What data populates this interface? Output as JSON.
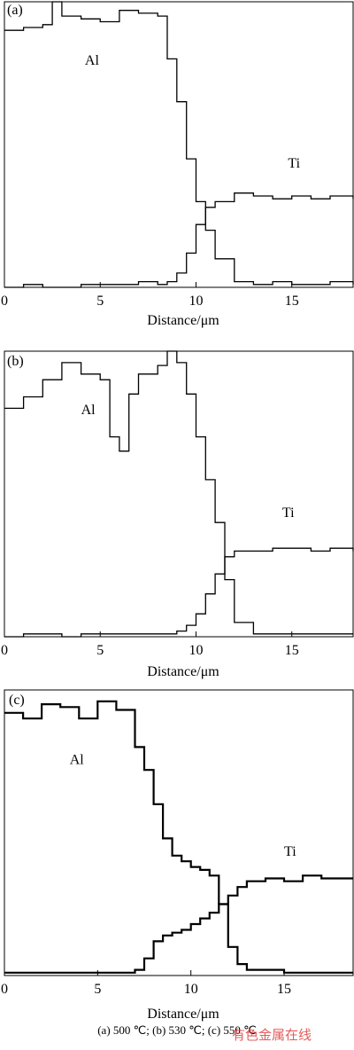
{
  "caption": "(a) 500 ℃; (b) 530 ℃; (c) 550 ℃",
  "watermark": "有色金属在线",
  "chart_data": [
    {
      "type": "line",
      "panel_label": "(a)",
      "xlabel": "Distance/μm",
      "ylabel": "",
      "xlim": [
        0,
        18.2
      ],
      "ylim": [
        0,
        100
      ],
      "xticks": [
        0,
        5,
        10,
        15
      ],
      "tick_labels": [
        "0",
        "5",
        "10",
        "15"
      ],
      "series": [
        {
          "name": "Al",
          "x": [
            0,
            1,
            2,
            2.5,
            3,
            4,
            5,
            6,
            7,
            8,
            8.5,
            9,
            9.5,
            10,
            10.5,
            11,
            12,
            13,
            14,
            15,
            16,
            17,
            18.2
          ],
          "values": [
            90,
            91,
            92,
            100,
            95,
            94,
            93,
            97,
            96,
            95,
            80,
            65,
            45,
            30,
            20,
            10,
            2,
            1,
            2,
            1,
            1,
            2,
            1
          ]
        },
        {
          "name": "Ti",
          "x": [
            0,
            1,
            2,
            3,
            4,
            5,
            6,
            7,
            8,
            8.5,
            9,
            9.5,
            10,
            10.5,
            11,
            12,
            13,
            14,
            15,
            16,
            17,
            18.2
          ],
          "values": [
            0,
            1,
            0,
            0,
            1,
            1,
            1,
            2,
            1,
            2,
            5,
            12,
            22,
            28,
            30,
            33,
            32,
            31,
            32,
            31,
            32,
            31
          ]
        }
      ]
    },
    {
      "type": "line",
      "panel_label": "(b)",
      "xlabel": "Distance/μm",
      "ylabel": "",
      "xlim": [
        0,
        18.2
      ],
      "ylim": [
        0,
        100
      ],
      "xticks": [
        0,
        5,
        10,
        15
      ],
      "tick_labels": [
        "0",
        "5",
        "10",
        "15"
      ],
      "series": [
        {
          "name": "Al",
          "x": [
            0,
            1,
            2,
            3,
            4,
            5,
            5.5,
            6,
            6.5,
            7,
            8,
            8.5,
            9,
            9.5,
            10,
            10.5,
            11,
            11.5,
            12,
            13,
            14,
            15,
            16,
            17,
            18.2
          ],
          "values": [
            80,
            84,
            90,
            96,
            92,
            90,
            70,
            65,
            85,
            92,
            95,
            100,
            96,
            85,
            70,
            55,
            40,
            20,
            5,
            1,
            1,
            1,
            1,
            1,
            1
          ]
        },
        {
          "name": "Ti",
          "x": [
            0,
            1,
            2,
            3,
            4,
            5,
            6,
            7,
            8,
            9,
            9.5,
            10,
            10.5,
            11,
            11.5,
            12,
            13,
            14,
            15,
            16,
            17,
            18.2
          ],
          "values": [
            0,
            1,
            1,
            0,
            1,
            1,
            1,
            1,
            1,
            2,
            4,
            8,
            15,
            22,
            28,
            30,
            30,
            31,
            31,
            30,
            31,
            30
          ]
        }
      ]
    },
    {
      "type": "line",
      "panel_label": "(c)",
      "xlabel": "Distance/μm",
      "ylabel": "",
      "xlim": [
        0,
        18.7
      ],
      "ylim": [
        0,
        100
      ],
      "xticks": [
        0,
        5,
        10,
        15
      ],
      "tick_labels": [
        "0",
        "5",
        "10",
        "15"
      ],
      "series": [
        {
          "name": "Al",
          "x": [
            0,
            1,
            2,
            3,
            4,
            5,
            6,
            7,
            7.5,
            8,
            8.5,
            9,
            9.5,
            10,
            10.5,
            11,
            11.5,
            12,
            12.5,
            13,
            14,
            15,
            16,
            17,
            18.7
          ],
          "values": [
            92,
            90,
            95,
            94,
            90,
            96,
            93,
            80,
            72,
            60,
            48,
            42,
            40,
            38,
            37,
            35,
            25,
            10,
            4,
            2,
            2,
            1,
            1,
            1,
            1
          ]
        },
        {
          "name": "Ti",
          "x": [
            0,
            1,
            2,
            3,
            4,
            5,
            6,
            7,
            7.5,
            8,
            8.5,
            9,
            9.5,
            10,
            10.5,
            11,
            11.5,
            12,
            12.5,
            13,
            14,
            15,
            16,
            17,
            18.7
          ],
          "values": [
            1,
            1,
            1,
            1,
            1,
            1,
            1,
            2,
            6,
            12,
            14,
            15,
            16,
            18,
            20,
            22,
            25,
            28,
            31,
            33,
            34,
            33,
            35,
            34,
            34
          ]
        }
      ]
    }
  ]
}
